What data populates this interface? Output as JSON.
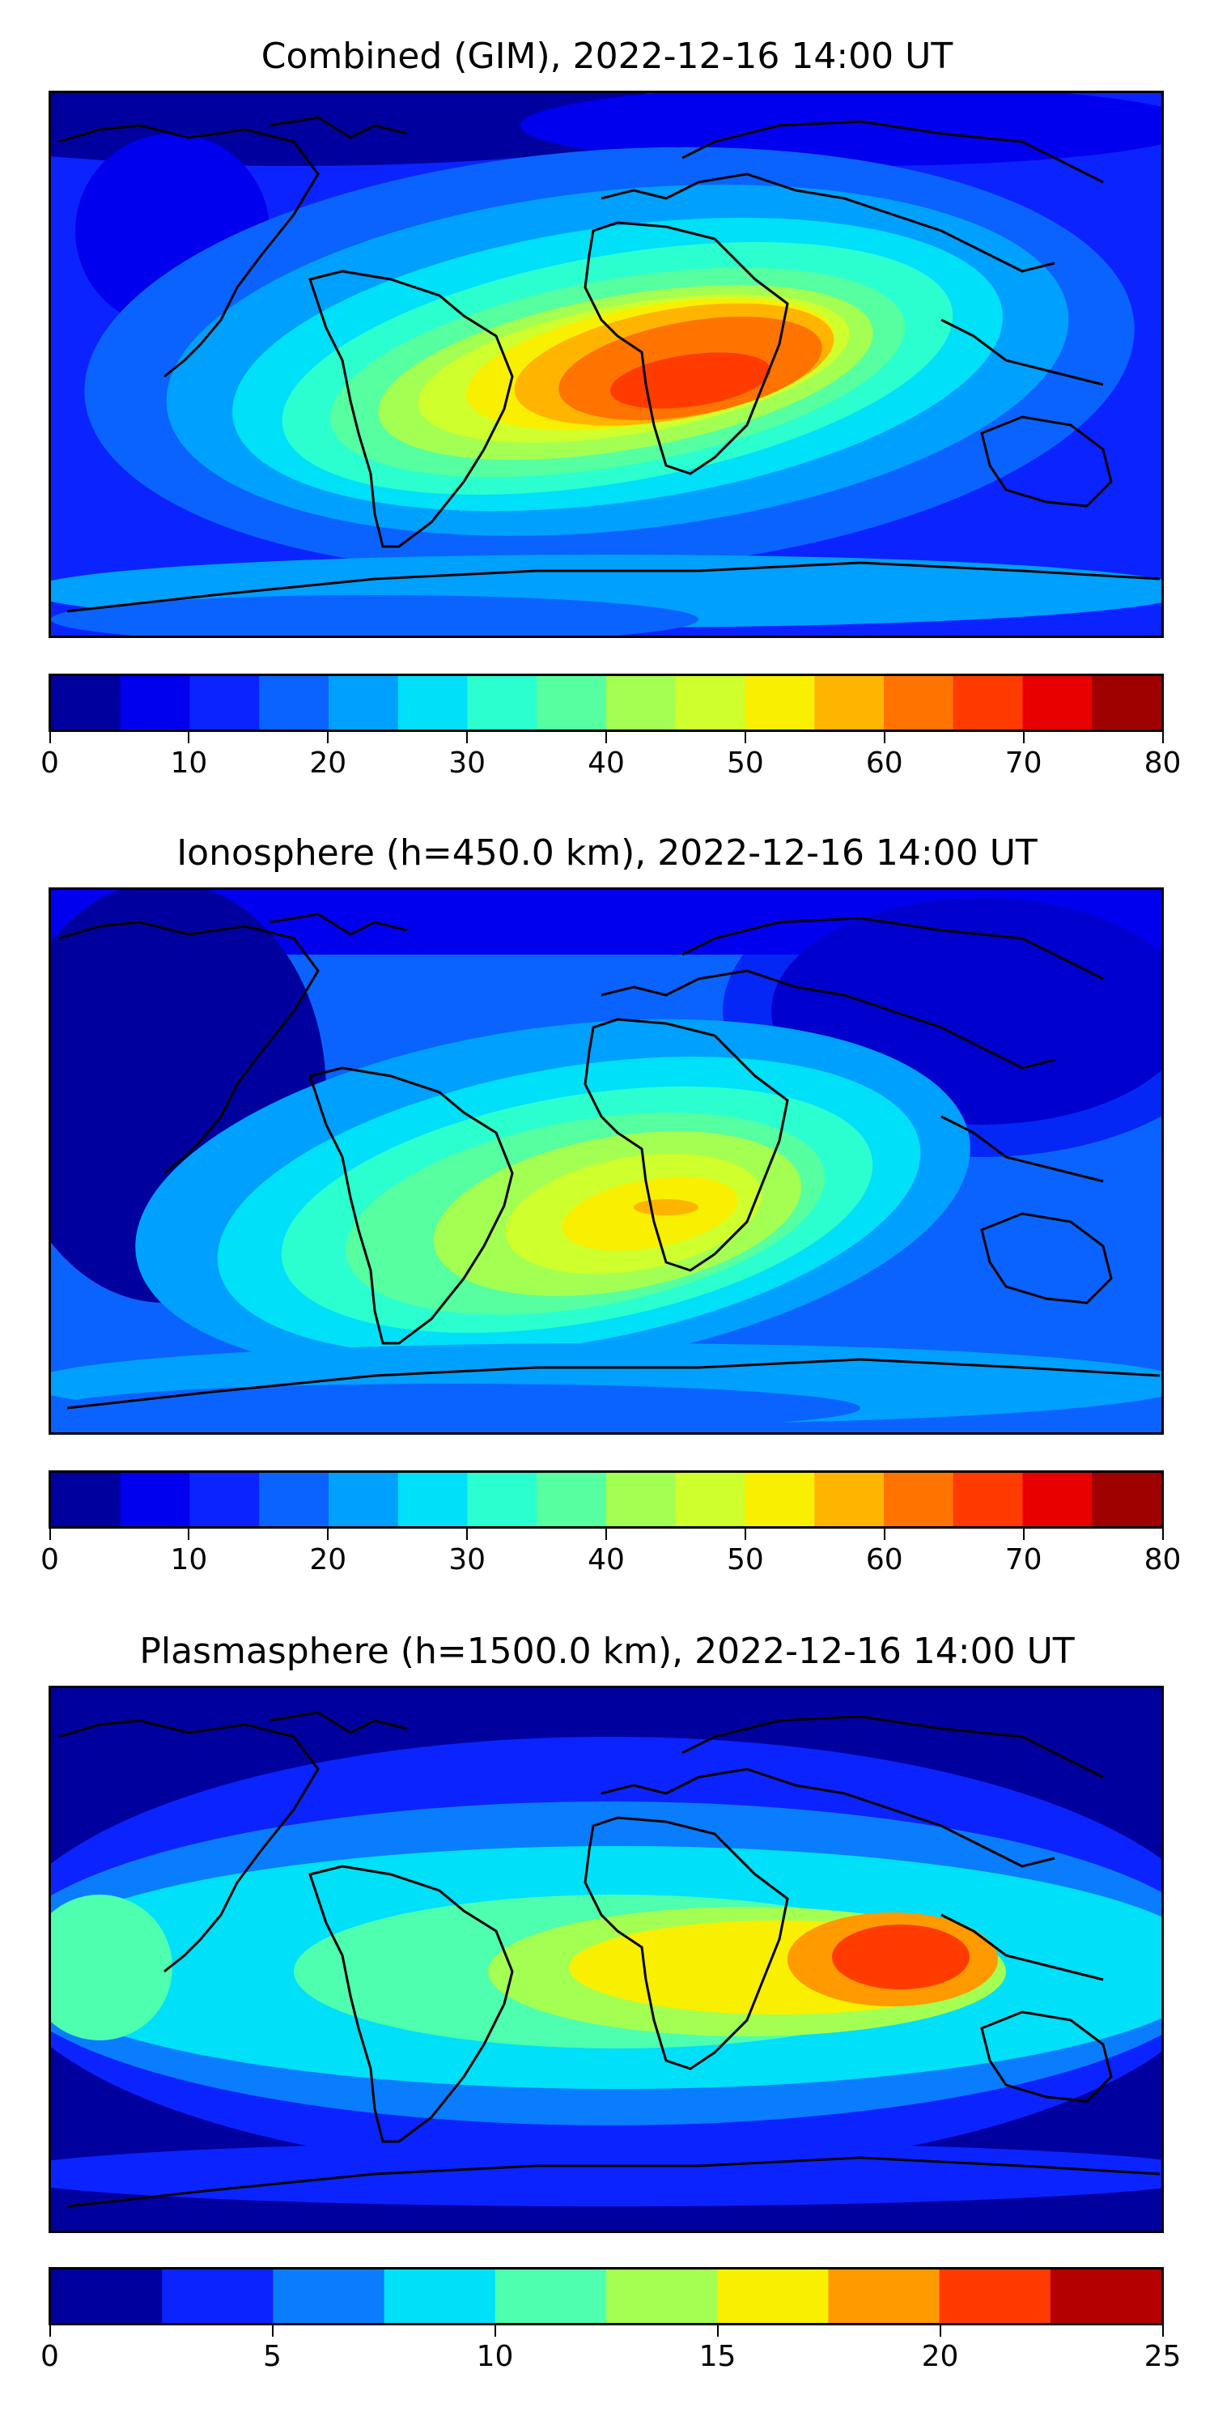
{
  "panels": [
    {
      "title": "Combined (GIM), 2022-12-16 14:00 UT",
      "colorbar": {
        "ticks": [
          "0",
          "10",
          "20",
          "30",
          "40",
          "50",
          "60",
          "70",
          "80"
        ],
        "min": 0,
        "max": 80,
        "colors": [
          "#00009f",
          "#0000ee",
          "#0b24ff",
          "#0a63ff",
          "#00a0ff",
          "#00e0f8",
          "#2bffd0",
          "#56ff9f",
          "#a4ff53",
          "#cfff2c",
          "#f9ef00",
          "#ffb400",
          "#ff7400",
          "#ff3b00",
          "#e80000",
          "#9f0000"
        ]
      }
    },
    {
      "title": "Ionosphere  (h=450.0 km), 2022-12-16 14:00 UT",
      "colorbar": {
        "ticks": [
          "0",
          "10",
          "20",
          "30",
          "40",
          "50",
          "60",
          "70",
          "80"
        ],
        "min": 0,
        "max": 80,
        "colors": [
          "#00009f",
          "#0000ee",
          "#0b24ff",
          "#0a63ff",
          "#00a0ff",
          "#00e0f8",
          "#2bffd0",
          "#56ff9f",
          "#a4ff53",
          "#cfff2c",
          "#f9ef00",
          "#ffb400",
          "#ff7400",
          "#ff3b00",
          "#e80000",
          "#9f0000"
        ]
      }
    },
    {
      "title": "Plasmasphere (h=1500.0 km), 2022-12-16 14:00 UT",
      "colorbar": {
        "ticks": [
          "0",
          "5",
          "10",
          "15",
          "20",
          "25"
        ],
        "min": 0,
        "max": 25,
        "colors": [
          "#00009f",
          "#0b24ff",
          "#0a7dff",
          "#00e0f8",
          "#4dffae",
          "#a4ff53",
          "#f9ef00",
          "#ff9a00",
          "#ff3b00",
          "#b40000"
        ]
      }
    }
  ]
}
